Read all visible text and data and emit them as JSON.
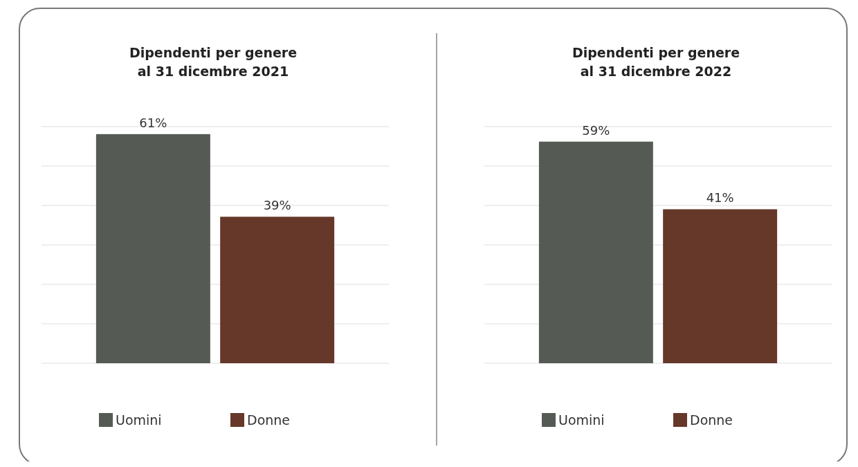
{
  "chart_data": [
    {
      "type": "bar",
      "title": "Dipendenti per genere al 31 dicembre 2021",
      "categories": [
        null
      ],
      "ylim": [
        0,
        63
      ],
      "yticks": [
        {
          "value": 0,
          "label": null
        },
        {
          "value": 10.5,
          "label": null
        },
        {
          "value": 21,
          "label": null
        },
        {
          "value": 31.5,
          "label": null
        },
        {
          "value": 42,
          "label": null
        },
        {
          "value": 52.5,
          "label": null
        },
        {
          "value": 63,
          "label": null
        }
      ],
      "grid": "y",
      "legend": "bottom",
      "series": [
        {
          "name": "Uomini",
          "color": "#555a55",
          "values": [
            61
          ],
          "value_labels": [
            "61%"
          ]
        },
        {
          "name": "Donne",
          "color": "#66382a",
          "values": [
            39
          ],
          "value_labels": [
            "39%"
          ]
        }
      ]
    },
    {
      "type": "bar",
      "title": "Dipendenti per genere al 31 dicembre 2022",
      "categories": [
        null
      ],
      "ylim": [
        0,
        63
      ],
      "yticks": [
        {
          "value": 0,
          "label": null
        },
        {
          "value": 10.5,
          "label": null
        },
        {
          "value": 21,
          "label": null
        },
        {
          "value": 31.5,
          "label": null
        },
        {
          "value": 42,
          "label": null
        },
        {
          "value": 52.5,
          "label": null
        },
        {
          "value": 63,
          "label": null
        }
      ],
      "grid": "y",
      "legend": "bottom",
      "series": [
        {
          "name": "Uomini",
          "color": "#555a55",
          "values": [
            59
          ],
          "value_labels": [
            "59%"
          ]
        },
        {
          "name": "Donne",
          "color": "#66382a",
          "values": [
            41
          ],
          "value_labels": [
            "41%"
          ]
        }
      ]
    }
  ]
}
